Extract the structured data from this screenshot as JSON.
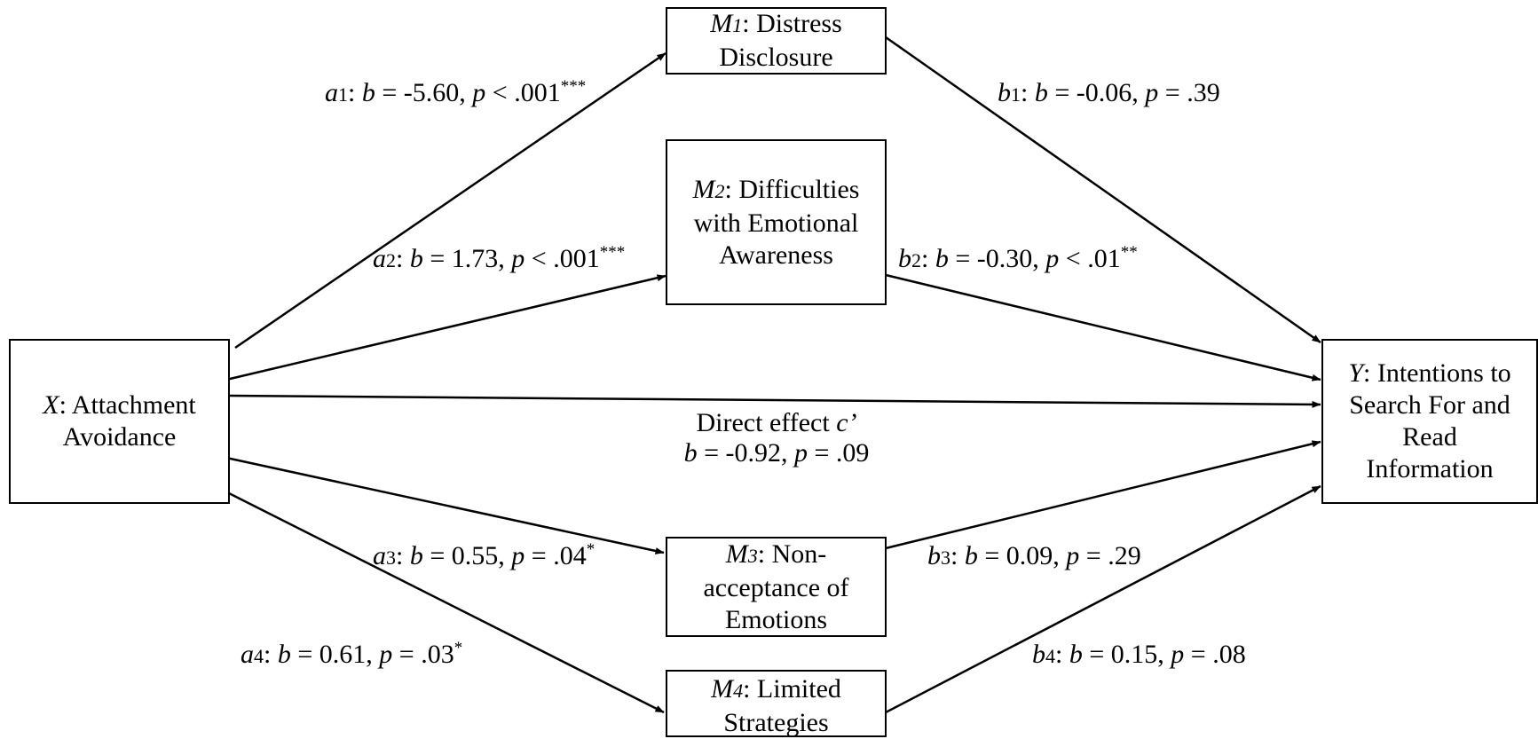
{
  "nodes": {
    "x": {
      "letter": "X",
      "text": ": Attachment Avoidance"
    },
    "m1": {
      "letter": "M",
      "sub": "1",
      "text": ": Distress Disclosure"
    },
    "m2": {
      "letter": "M",
      "sub": "2",
      "text": ": Difficulties with Emotional Awareness"
    },
    "m3": {
      "letter": "M",
      "sub": "3",
      "text": ": Non-acceptance of Emotions"
    },
    "m4": {
      "letter": "M",
      "sub": "4",
      "text": ": Limited Strategies"
    },
    "y": {
      "letter": "Y",
      "text": ": Intentions to Search For and Read Information"
    }
  },
  "paths": {
    "a1": {
      "letter": "a",
      "sub": "1",
      "b": "-5.60",
      "p_op": " < ",
      "p": ".001",
      "stars": "***"
    },
    "a2": {
      "letter": "a",
      "sub": "2",
      "b": "1.73",
      "p_op": " < ",
      "p": ".001",
      "stars": "***"
    },
    "a3": {
      "letter": "a",
      "sub": "3",
      "b": "0.55",
      "p_op": " = ",
      "p": ".04",
      "stars": "*"
    },
    "a4": {
      "letter": "a",
      "sub": "4",
      "b": "0.61",
      "p_op": " = ",
      "p": ".03",
      "stars": "*"
    },
    "b1": {
      "letter": "b",
      "sub": "1",
      "b": "-0.06",
      "p_op": " = ",
      "p": ".39",
      "stars": ""
    },
    "b2": {
      "letter": "b",
      "sub": "2",
      "b": "-0.30",
      "p_op": " < ",
      "p": ".01",
      "stars": "**"
    },
    "b3": {
      "letter": "b",
      "sub": "3",
      "b": "0.09",
      "p_op": " = ",
      "p": ".29",
      "stars": ""
    },
    "b4": {
      "letter": "b",
      "sub": "4",
      "b": "0.15",
      "p_op": " = ",
      "p": ".08",
      "stars": ""
    }
  },
  "direct": {
    "title": "Direct effect ",
    "symbol": "c’",
    "b": "-0.92",
    "p_op": " = ",
    "p": ".09"
  },
  "symbols": {
    "b": "b",
    "p": "p",
    "eq": " = ",
    "colon": ": ",
    "comma": ", "
  }
}
